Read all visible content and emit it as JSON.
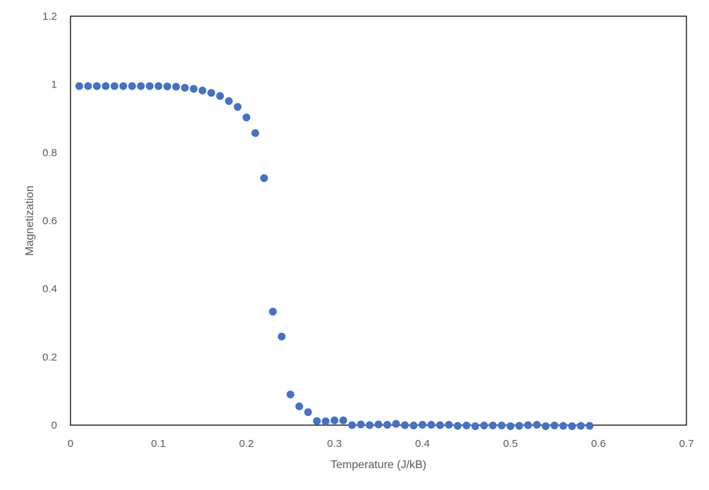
{
  "chart_data": {
    "type": "scatter",
    "title": "",
    "xlabel": "Temperature (J/kB)",
    "ylabel": "Magnetization",
    "xlim": [
      0,
      0.7
    ],
    "ylim": [
      0,
      1.2
    ],
    "x_ticks": [
      "0",
      "0.1",
      "0.2",
      "0.3",
      "0.4",
      "0.5",
      "0.6",
      "0.7"
    ],
    "y_ticks": [
      "0",
      "0.2",
      "0.4",
      "0.6",
      "0.8",
      "1",
      "1.2"
    ],
    "grid": false,
    "legend": "none",
    "marker_color": "#4472C4",
    "series": [
      {
        "points": [
          [
            0.01,
            0.995
          ],
          [
            0.02,
            0.995
          ],
          [
            0.03,
            0.995
          ],
          [
            0.04,
            0.995
          ],
          [
            0.05,
            0.995
          ],
          [
            0.06,
            0.995
          ],
          [
            0.07,
            0.995
          ],
          [
            0.08,
            0.995
          ],
          [
            0.09,
            0.995
          ],
          [
            0.1,
            0.995
          ],
          [
            0.11,
            0.994
          ],
          [
            0.12,
            0.993
          ],
          [
            0.13,
            0.99
          ],
          [
            0.14,
            0.987
          ],
          [
            0.15,
            0.982
          ],
          [
            0.16,
            0.975
          ],
          [
            0.17,
            0.966
          ],
          [
            0.18,
            0.951
          ],
          [
            0.19,
            0.934
          ],
          [
            0.2,
            0.903
          ],
          [
            0.21,
            0.857
          ],
          [
            0.22,
            0.725
          ],
          [
            0.23,
            0.333
          ],
          [
            0.24,
            0.26
          ],
          [
            0.25,
            0.09
          ],
          [
            0.26,
            0.055
          ],
          [
            0.27,
            0.038
          ],
          [
            0.28,
            0.012
          ],
          [
            0.29,
            0.011
          ],
          [
            0.3,
            0.014
          ],
          [
            0.31,
            0.014
          ],
          [
            0.32,
            0.0
          ],
          [
            0.33,
            0.002
          ],
          [
            0.34,
            0.0
          ],
          [
            0.35,
            0.002
          ],
          [
            0.36,
            0.001
          ],
          [
            0.37,
            0.004
          ],
          [
            0.38,
            0.0
          ],
          [
            0.39,
            -0.001
          ],
          [
            0.4,
            0.001
          ],
          [
            0.41,
            0.001
          ],
          [
            0.42,
            0.0
          ],
          [
            0.43,
            0.001
          ],
          [
            0.44,
            -0.002
          ],
          [
            0.45,
            -0.001
          ],
          [
            0.46,
            -0.003
          ],
          [
            0.47,
            -0.001
          ],
          [
            0.48,
            -0.001
          ],
          [
            0.49,
            -0.001
          ],
          [
            0.5,
            -0.003
          ],
          [
            0.51,
            -0.002
          ],
          [
            0.52,
            0.0
          ],
          [
            0.53,
            0.001
          ],
          [
            0.54,
            -0.003
          ],
          [
            0.55,
            -0.001
          ],
          [
            0.56,
            -0.002
          ],
          [
            0.57,
            -0.003
          ],
          [
            0.58,
            -0.002
          ],
          [
            0.59,
            -0.002
          ]
        ]
      }
    ]
  }
}
